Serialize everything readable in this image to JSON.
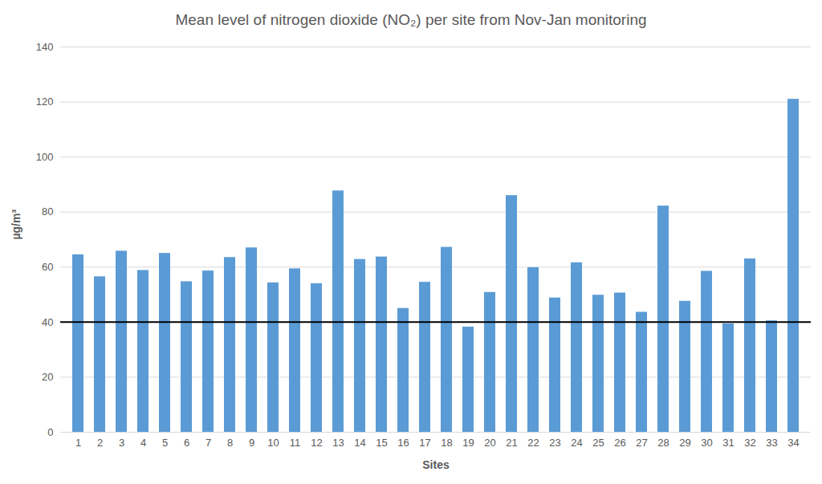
{
  "chart_data": {
    "type": "bar",
    "title": "Mean level of nitrogen dioxide (NO₂) per site from Nov-Jan monitoring",
    "x_label": "Sites",
    "y_label": "µg/m³",
    "categories": [
      "1",
      "2",
      "3",
      "4",
      "5",
      "6",
      "7",
      "8",
      "9",
      "10",
      "11",
      "12",
      "13",
      "14",
      "15",
      "16",
      "17",
      "18",
      "19",
      "20",
      "21",
      "22",
      "23",
      "24",
      "25",
      "26",
      "27",
      "28",
      "29",
      "30",
      "31",
      "32",
      "33",
      "34"
    ],
    "values": [
      64.5,
      56.5,
      65.8,
      58.8,
      65,
      54.7,
      58.6,
      63.5,
      67,
      54.3,
      59.4,
      54,
      87.7,
      62.8,
      63.7,
      45,
      54.5,
      67.2,
      38.2,
      50.8,
      86,
      59.8,
      48.8,
      61.6,
      49.8,
      50.6,
      43.6,
      82.2,
      47.6,
      58.5,
      39.4,
      63,
      40.5,
      121
    ],
    "threshold": 40,
    "color": "#5b9bd5",
    "ylim": [
      0,
      140
    ],
    "yticks": [
      0,
      20,
      40,
      60,
      80,
      100,
      120,
      140
    ],
    "grid": true
  }
}
